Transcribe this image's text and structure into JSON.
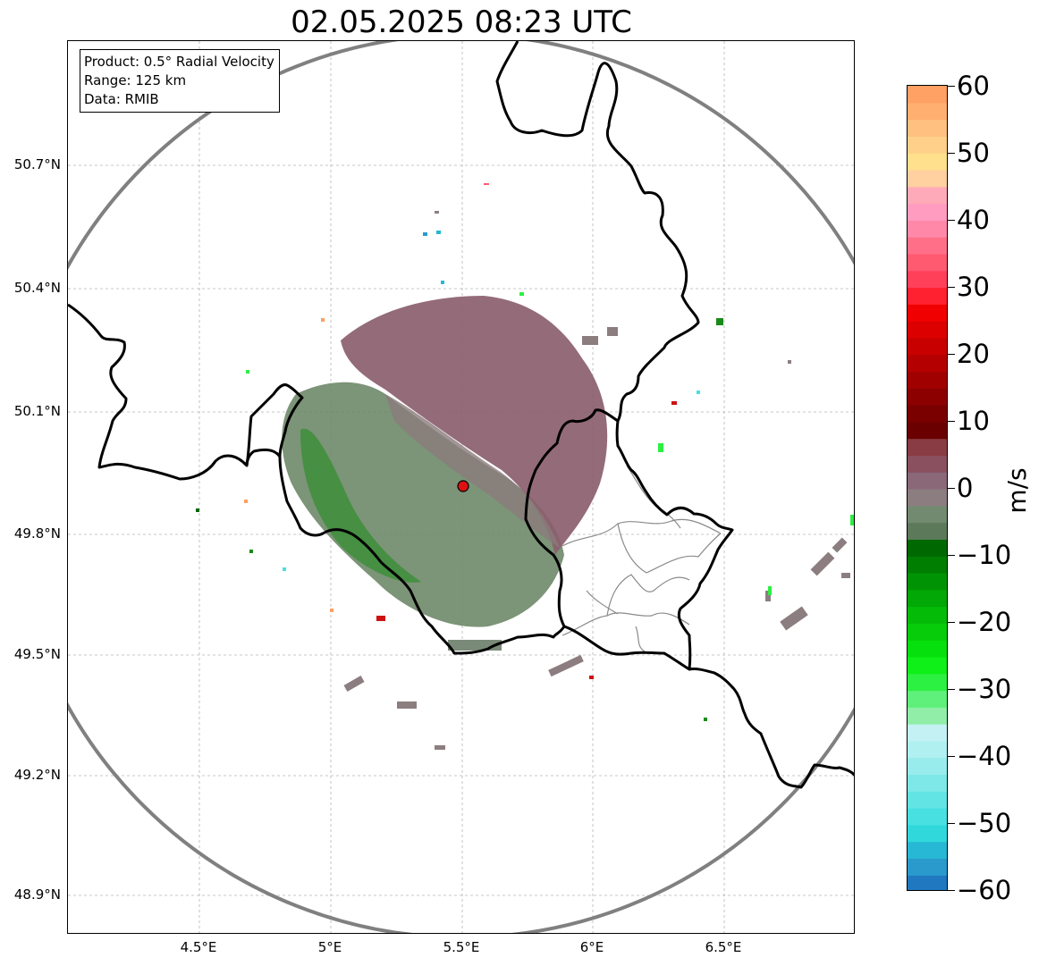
{
  "title": "02.05.2025 08:23 UTC",
  "info": {
    "product": "Product: 0.5° Radial Velocity",
    "range": "Range: 125 km",
    "data": "Data: RMIB"
  },
  "axes": {
    "lat_labels": [
      "50.7°N",
      "50.4°N",
      "50.1°N",
      "49.8°N",
      "49.5°N",
      "49.2°N",
      "48.9°N"
    ],
    "lon_labels": [
      "4.5°E",
      "5°E",
      "5.5°E",
      "6°E",
      "6.5°E"
    ]
  },
  "radar_site": {
    "name": "radar-site",
    "color": "#dd1111"
  },
  "colorbar": {
    "unit": "m/s",
    "min": -60,
    "max": 60,
    "ticks": [
      "60",
      "50",
      "40",
      "30",
      "20",
      "10",
      "0",
      "−10",
      "−20",
      "−30",
      "−40",
      "−50",
      "−60"
    ],
    "colors": [
      "#2078c0",
      "#2a9acc",
      "#26b8d4",
      "#30d8dc",
      "#48e0e0",
      "#62e4e4",
      "#7ee8e8",
      "#98ecec",
      "#b0f0f0",
      "#c4f2f4",
      "#90eea8",
      "#5ef07a",
      "#2cf042",
      "#0ef018",
      "#06e00c",
      "#06cc0a",
      "#04bc08",
      "#02a806",
      "#009404",
      "#007e02",
      "#006800",
      "#5c7a5a",
      "#728a70",
      "#8c7e80",
      "#8a6878",
      "#8a5060",
      "#8a3c44",
      "#6a0000",
      "#7a0000",
      "#8c0000",
      "#a00000",
      "#b40000",
      "#c80000",
      "#dc0000",
      "#f00000",
      "#ff2030",
      "#ff4058",
      "#ff5a70",
      "#ff7088",
      "#ff88a8",
      "#ff9cc0",
      "#ffaab8",
      "#ffd0a0",
      "#ffe08c",
      "#ffd08a",
      "#ffc080",
      "#ffb070",
      "#ffa064"
    ]
  }
}
